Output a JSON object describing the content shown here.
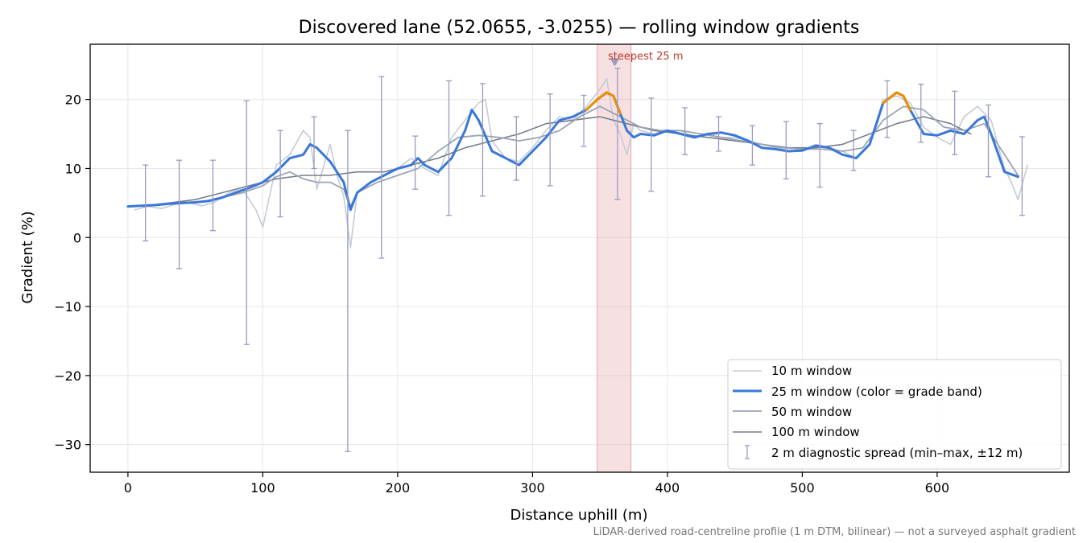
{
  "chart_data": {
    "type": "line",
    "title": "Discovered lane (52.0655, -3.0255) — rolling window gradients",
    "xlabel": "Distance uphill (m)",
    "ylabel": "Gradient (%)",
    "xlim": [
      -28,
      698
    ],
    "ylim": [
      -34,
      28
    ],
    "x_ticks": [
      0,
      100,
      200,
      300,
      400,
      500,
      600
    ],
    "x_tick_labels": [
      "0",
      "100",
      "200",
      "300",
      "400",
      "500",
      "600"
    ],
    "y_ticks": [
      -30,
      -20,
      -10,
      0,
      10,
      20
    ],
    "y_tick_labels": [
      "−30",
      "−20",
      "−10",
      "0",
      "10",
      "20"
    ],
    "grid": true,
    "legend_position": "lower-right",
    "footnote": "LiDAR-derived road-centreline profile (1 m DTM, bilinear) — not a surveyed asphalt gradient",
    "highlight": {
      "label": "steepest 25 m",
      "x_start": 348,
      "x_end": 373,
      "peak_x": 361,
      "peak_y": 25.5,
      "color": "#e8a5aa"
    },
    "series": [
      {
        "name": "10 m window",
        "color": "#c5ccd6",
        "x": [
          5,
          15,
          25,
          35,
          45,
          55,
          65,
          75,
          85,
          95,
          100,
          110,
          120,
          130,
          135,
          140,
          150,
          155,
          160,
          165,
          170,
          180,
          190,
          200,
          210,
          220,
          230,
          240,
          250,
          260,
          265,
          270,
          280,
          290,
          300,
          310,
          320,
          330,
          340,
          350,
          355,
          360,
          365,
          370,
          375,
          380,
          390,
          400,
          410,
          420,
          430,
          440,
          450,
          460,
          470,
          480,
          490,
          500,
          510,
          520,
          530,
          540,
          550,
          560,
          570,
          580,
          590,
          600,
          610,
          620,
          630,
          640,
          650,
          655,
          660,
          667
        ],
        "values": [
          4.0,
          4.5,
          4.2,
          4.8,
          5.0,
          4.6,
          5.2,
          6.5,
          7.0,
          4.0,
          1.5,
          10.5,
          12.0,
          15.5,
          14.5,
          7.0,
          13.5,
          9.0,
          6.0,
          -1.5,
          6.5,
          8.0,
          9.0,
          10.0,
          11.5,
          10.0,
          9.0,
          14.5,
          17.0,
          19.5,
          20.0,
          14.0,
          11.5,
          11.0,
          13.0,
          15.5,
          17.5,
          17.0,
          19.0,
          21.5,
          23.0,
          17.0,
          15.0,
          12.0,
          16.5,
          15.5,
          15.0,
          15.5,
          15.5,
          14.5,
          15.0,
          14.5,
          14.5,
          14.0,
          13.5,
          13.0,
          12.5,
          12.5,
          13.5,
          13.0,
          12.5,
          11.5,
          13.5,
          20.0,
          20.5,
          19.5,
          16.0,
          14.5,
          13.5,
          17.5,
          19.0,
          17.0,
          10.0,
          8.0,
          5.5,
          10.5
        ]
      },
      {
        "name": "25 m window (color = grade band)",
        "color": "#3a78d8",
        "steep_color": "#e8900a",
        "steep_threshold": 20,
        "x": [
          0,
          10,
          20,
          30,
          40,
          50,
          60,
          70,
          80,
          90,
          100,
          110,
          115,
          120,
          130,
          135,
          140,
          150,
          160,
          165,
          170,
          180,
          190,
          195,
          200,
          210,
          215,
          220,
          230,
          240,
          250,
          255,
          260,
          270,
          280,
          290,
          300,
          310,
          320,
          330,
          340,
          348,
          355,
          360,
          365,
          370,
          375,
          380,
          390,
          400,
          410,
          420,
          430,
          440,
          450,
          460,
          470,
          480,
          490,
          500,
          510,
          520,
          530,
          540,
          550,
          560,
          570,
          575,
          580,
          590,
          600,
          610,
          620,
          630,
          635,
          640,
          650,
          660
        ],
        "values": [
          4.5,
          4.6,
          4.7,
          4.9,
          5.0,
          5.1,
          5.3,
          5.8,
          6.5,
          7.2,
          8.0,
          9.5,
          10.5,
          11.5,
          12.0,
          13.5,
          13.0,
          11.0,
          8.0,
          4.0,
          6.5,
          8.0,
          9.0,
          9.5,
          10.0,
          10.5,
          11.5,
          10.5,
          9.5,
          11.5,
          15.5,
          18.5,
          17.0,
          12.5,
          11.5,
          10.5,
          12.5,
          14.5,
          17.0,
          17.5,
          18.5,
          20.0,
          21.0,
          20.5,
          18.0,
          15.5,
          14.5,
          15.0,
          14.8,
          15.5,
          15.0,
          14.5,
          15.0,
          15.2,
          14.8,
          14.0,
          13.0,
          12.8,
          12.5,
          12.6,
          13.3,
          13.0,
          12.0,
          11.5,
          13.5,
          19.5,
          21.0,
          20.5,
          18.5,
          15.0,
          14.8,
          15.5,
          15.0,
          17.0,
          17.5,
          15.0,
          9.5,
          8.8
        ]
      },
      {
        "name": "50 m window",
        "color": "#9aa5b5",
        "x": [
          10,
          25,
          40,
          55,
          70,
          85,
          100,
          110,
          120,
          130,
          140,
          150,
          160,
          165,
          170,
          185,
          200,
          215,
          230,
          245,
          260,
          275,
          290,
          305,
          320,
          335,
          350,
          365,
          380,
          395,
          410,
          425,
          440,
          455,
          470,
          485,
          500,
          515,
          530,
          545,
          560,
          575,
          590,
          605,
          620,
          635,
          650,
          660
        ],
        "values": [
          4.5,
          4.7,
          5.0,
          5.2,
          5.8,
          6.5,
          7.5,
          8.8,
          9.5,
          8.5,
          8.0,
          8.0,
          7.0,
          4.5,
          6.5,
          8.0,
          9.0,
          10.0,
          12.5,
          14.5,
          14.8,
          14.5,
          14.0,
          14.5,
          15.5,
          17.5,
          19.0,
          17.5,
          16.0,
          15.5,
          15.5,
          15.0,
          14.5,
          14.0,
          13.5,
          13.0,
          12.8,
          12.8,
          12.5,
          13.0,
          17.0,
          19.0,
          18.5,
          16.0,
          15.5,
          16.5,
          12.0,
          9.0
        ]
      },
      {
        "name": "100 m window",
        "color": "#777f8c",
        "x": [
          10,
          30,
          50,
          70,
          90,
          110,
          130,
          150,
          170,
          190,
          210,
          230,
          250,
          270,
          290,
          310,
          330,
          350,
          370,
          390,
          410,
          430,
          450,
          470,
          490,
          510,
          530,
          550,
          570,
          590,
          610,
          625
        ],
        "values": [
          4.5,
          5.0,
          5.5,
          6.5,
          7.5,
          8.5,
          9.0,
          9.0,
          9.5,
          9.5,
          10.5,
          11.5,
          13.0,
          14.0,
          15.0,
          16.5,
          17.0,
          17.5,
          16.5,
          15.5,
          15.0,
          14.5,
          14.0,
          13.5,
          13.0,
          13.0,
          13.5,
          15.0,
          16.5,
          17.5,
          16.5,
          15.0
        ]
      }
    ],
    "error_bars": {
      "name": "2 m diagnostic spread (min–max, ±12 m)",
      "color": "#9a9ac0",
      "x": [
        13,
        38,
        63,
        88,
        113,
        138,
        163,
        188,
        213,
        238,
        263,
        288,
        313,
        338,
        363,
        388,
        413,
        438,
        463,
        488,
        513,
        538,
        563,
        588,
        613,
        638,
        663
      ],
      "low": [
        -0.5,
        -4.5,
        1.0,
        -15.5,
        3.0,
        10.0,
        -31.0,
        -3.0,
        7.0,
        3.2,
        6.0,
        8.3,
        7.5,
        13.2,
        5.5,
        6.7,
        12.0,
        12.5,
        10.5,
        8.5,
        7.3,
        9.7,
        14.5,
        13.8,
        12.0,
        8.8,
        3.2
      ],
      "high": [
        10.5,
        11.2,
        11.2,
        19.8,
        15.5,
        17.5,
        15.5,
        23.3,
        14.7,
        22.7,
        22.3,
        17.5,
        20.8,
        20.6,
        24.5,
        20.2,
        18.8,
        17.5,
        16.2,
        16.8,
        16.5,
        15.5,
        22.7,
        22.2,
        21.2,
        19.2,
        14.6
      ]
    }
  }
}
